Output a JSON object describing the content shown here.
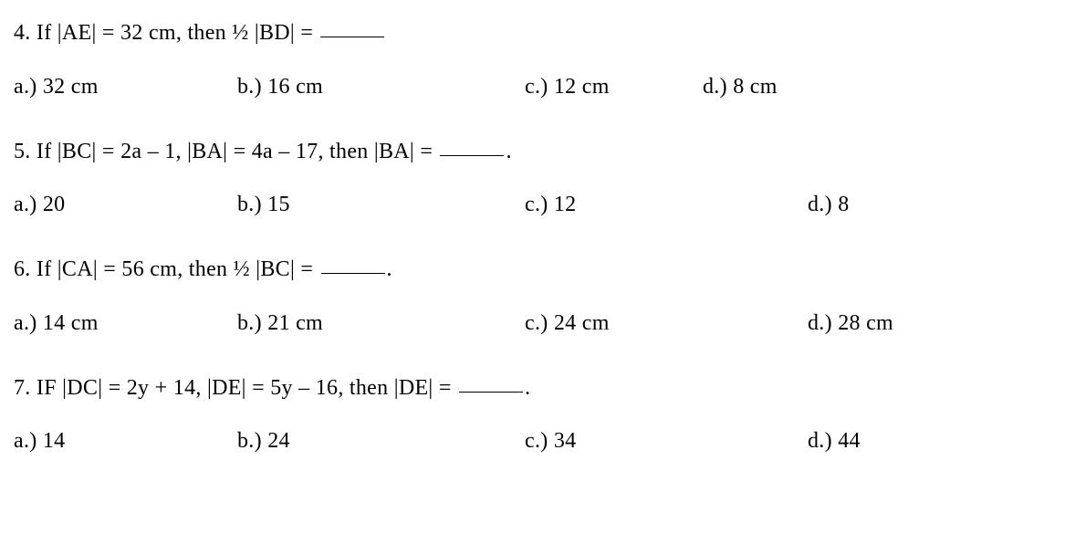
{
  "questions": [
    {
      "number": "4.",
      "prefix": "If |AE| = 32 cm, then ½ |BD| = ",
      "suffix": "",
      "options": {
        "a": "a.) 32 cm",
        "b": "b.) 16 cm",
        "c": "c.) 12 cm",
        "d": "d.) 8 cm"
      },
      "option_positions": {
        "a": 0,
        "b": 245,
        "c": 560,
        "d": 755
      }
    },
    {
      "number": "5.",
      "prefix": " If |BC| = 2a – 1, |BA| = 4a – 17, then |BA| = ",
      "suffix": ".",
      "options": {
        "a": "a.) 20",
        "b": "b.) 15",
        "c": "c.) 12",
        "d": "d.) 8"
      },
      "option_positions": {
        "a": 0,
        "b": 245,
        "c": 560,
        "d": 870
      }
    },
    {
      "number": "6.",
      "prefix": " If |CA| = 56 cm, then ½ |BC| = ",
      "suffix": ".",
      "options": {
        "a": "a.) 14 cm",
        "b": "b.) 21 cm",
        "c": "c.) 24 cm",
        "d": "d.) 28 cm"
      },
      "option_positions": {
        "a": 0,
        "b": 245,
        "c": 560,
        "d": 870
      }
    },
    {
      "number": "7.",
      "prefix": " IF |DC| = 2y + 14, |DE| = 5y – 16, then |DE| = ",
      "suffix": ".",
      "options": {
        "a": "a.) 14",
        "b": "b.) 24",
        "c": "c.) 34",
        "d": "d.) 44"
      },
      "option_positions": {
        "a": 0,
        "b": 245,
        "c": 560,
        "d": 870
      }
    }
  ],
  "styles": {
    "font_family": "Bookman Old Style",
    "font_size": 24,
    "text_color": "#000000",
    "background_color": "#ffffff",
    "blank_width": 70
  }
}
